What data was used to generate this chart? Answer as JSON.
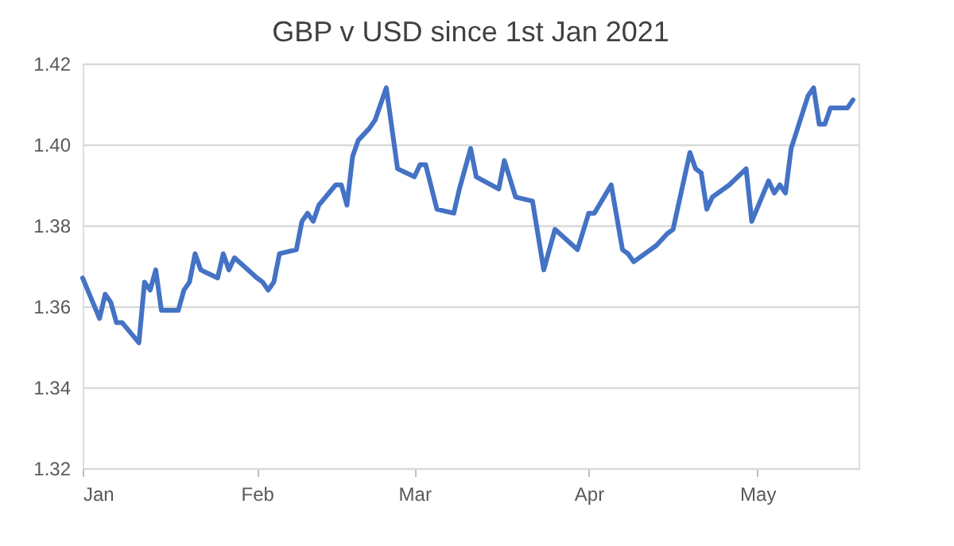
{
  "chart_data": {
    "type": "line",
    "title": "GBP v USD since 1st Jan 2021",
    "x": [
      "2021-01-01",
      "2021-01-04",
      "2021-01-05",
      "2021-01-06",
      "2021-01-07",
      "2021-01-08",
      "2021-01-11",
      "2021-01-12",
      "2021-01-13",
      "2021-01-14",
      "2021-01-15",
      "2021-01-18",
      "2021-01-19",
      "2021-01-20",
      "2021-01-21",
      "2021-01-22",
      "2021-01-25",
      "2021-01-26",
      "2021-01-27",
      "2021-01-28",
      "2021-02-01",
      "2021-02-02",
      "2021-02-03",
      "2021-02-04",
      "2021-02-05",
      "2021-02-08",
      "2021-02-09",
      "2021-02-10",
      "2021-02-11",
      "2021-02-12",
      "2021-02-15",
      "2021-02-16",
      "2021-02-17",
      "2021-02-18",
      "2021-02-19",
      "2021-02-21",
      "2021-02-22",
      "2021-02-24",
      "2021-02-26",
      "2021-03-01",
      "2021-03-02",
      "2021-03-03",
      "2021-03-05",
      "2021-03-08",
      "2021-03-09",
      "2021-03-11",
      "2021-03-12",
      "2021-03-16",
      "2021-03-17",
      "2021-03-19",
      "2021-03-22",
      "2021-03-24",
      "2021-03-26",
      "2021-03-30",
      "2021-04-01",
      "2021-04-02",
      "2021-04-05",
      "2021-04-07",
      "2021-04-08",
      "2021-04-09",
      "2021-04-13",
      "2021-04-15",
      "2021-04-16",
      "2021-04-19",
      "2021-04-20",
      "2021-04-21",
      "2021-04-22",
      "2021-04-23",
      "2021-04-26",
      "2021-04-29",
      "2021-04-30",
      "2021-05-03",
      "2021-05-04",
      "2021-05-05",
      "2021-05-06",
      "2021-05-07",
      "2021-05-10",
      "2021-05-11",
      "2021-05-12",
      "2021-05-13",
      "2021-05-14",
      "2021-05-17",
      "2021-05-18"
    ],
    "series": [
      {
        "color": "#4472c4",
        "values": [
          1.367,
          1.357,
          1.363,
          1.361,
          1.356,
          1.356,
          1.351,
          1.366,
          1.364,
          1.369,
          1.359,
          1.359,
          1.364,
          1.366,
          1.373,
          1.369,
          1.367,
          1.373,
          1.369,
          1.372,
          1.367,
          1.366,
          1.364,
          1.366,
          1.373,
          1.374,
          1.381,
          1.383,
          1.381,
          1.385,
          1.39,
          1.39,
          1.385,
          1.397,
          1.401,
          1.404,
          1.406,
          1.414,
          1.394,
          1.392,
          1.395,
          1.395,
          1.384,
          1.383,
          1.389,
          1.399,
          1.392,
          1.389,
          1.396,
          1.387,
          1.386,
          1.369,
          1.379,
          1.374,
          1.383,
          1.383,
          1.39,
          1.374,
          1.373,
          1.371,
          1.375,
          1.378,
          1.379,
          1.398,
          1.394,
          1.393,
          1.384,
          1.387,
          1.39,
          1.394,
          1.381,
          1.391,
          1.388,
          1.39,
          1.388,
          1.399,
          1.412,
          1.414,
          1.405,
          1.405,
          1.409,
          1.409,
          1.411
        ]
      }
    ],
    "xlim": [
      "2021-01-01",
      "2021-05-19"
    ],
    "xticks": [
      {
        "value": "2021-01-01",
        "label": "Jan"
      },
      {
        "value": "2021-02-01",
        "label": "Feb"
      },
      {
        "value": "2021-03-01",
        "label": "Mar"
      },
      {
        "value": "2021-04-01",
        "label": "Apr"
      },
      {
        "value": "2021-05-01",
        "label": "May"
      }
    ],
    "ylim": [
      1.32,
      1.42
    ],
    "yticks": [
      {
        "value": 1.32,
        "label": "1.32"
      },
      {
        "value": 1.34,
        "label": "1.34"
      },
      {
        "value": 1.36,
        "label": "1.36"
      },
      {
        "value": 1.38,
        "label": "1.38"
      },
      {
        "value": 1.4,
        "label": "1.40"
      },
      {
        "value": 1.42,
        "label": "1.42"
      }
    ],
    "grid": "y",
    "legend": false,
    "marker": "none",
    "line_style": "solid"
  }
}
